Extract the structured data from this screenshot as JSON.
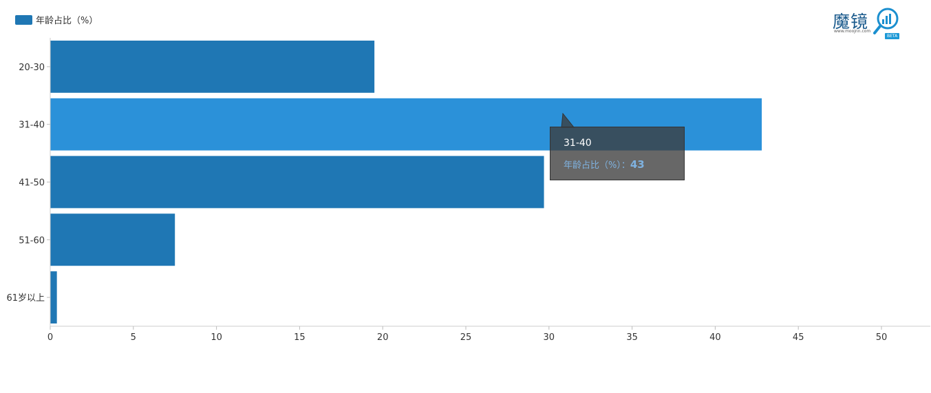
{
  "legend": {
    "label": "年龄占比（%）",
    "color": "#1f77b4"
  },
  "logo": {
    "name": "魔镜",
    "url": "www.moojnn.com",
    "badge": "BETA"
  },
  "tooltip": {
    "category": "31-40",
    "series_label": "年龄占比（%）：",
    "value": "43"
  },
  "chart_data": {
    "type": "bar",
    "orientation": "horizontal",
    "categories": [
      "20-30",
      "31-40",
      "41-50",
      "51-60",
      "61岁以上"
    ],
    "series": [
      {
        "name": "年龄占比（%）",
        "values": [
          19.5,
          42.8,
          29.7,
          7.5,
          0.4
        ]
      }
    ],
    "x_ticks": [
      "0",
      "5",
      "10",
      "15",
      "20",
      "25",
      "30",
      "35",
      "40",
      "45",
      "50"
    ],
    "xlim": [
      0,
      50
    ],
    "highlighted_category": "31-40",
    "colors": {
      "bar": "#1f77b4",
      "highlight": "#2b91d9"
    },
    "grid": false,
    "legend_position": "top-left"
  }
}
